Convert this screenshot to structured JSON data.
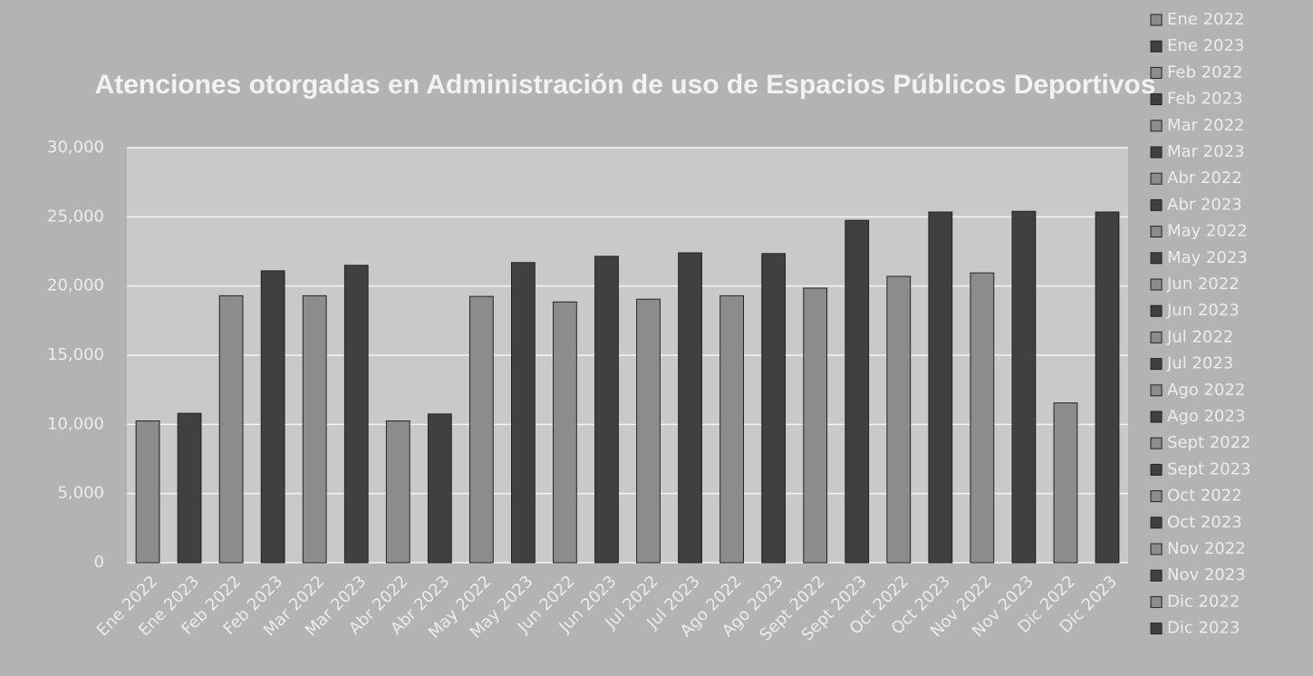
{
  "chart_data": {
    "type": "bar",
    "title": "Atenciones otorgadas en Administración de uso de Espacios Públicos Deportivos",
    "categories": [
      "Ene 2022",
      "Ene 2023",
      "Feb 2022",
      "Feb 2023",
      "Mar 2022",
      "Mar 2023",
      "Abr 2022",
      "Abr 2023",
      "May 2022",
      "May 2023",
      "Jun 2022",
      "Jun 2023",
      "Jul 2022",
      "Jul 2023",
      "Ago 2022",
      "Ago 2023",
      "Sept 2022",
      "Sept 2023",
      "Oct 2022",
      "Oct 2023",
      "Nov 2022",
      "Nov 2023",
      "Dic 2022",
      "Dic 2023"
    ],
    "values": [
      10250,
      10800,
      19300,
      21100,
      19300,
      21500,
      10250,
      10750,
      19250,
      21700,
      18850,
      22150,
      19050,
      22400,
      19300,
      22350,
      19850,
      24750,
      20700,
      25350,
      20950,
      25400,
      11550,
      25350
    ],
    "colors": [
      "#8c8c8c",
      "#404040",
      "#8c8c8c",
      "#404040",
      "#8c8c8c",
      "#404040",
      "#8c8c8c",
      "#404040",
      "#8c8c8c",
      "#404040",
      "#8c8c8c",
      "#404040",
      "#8c8c8c",
      "#404040",
      "#8c8c8c",
      "#404040",
      "#8c8c8c",
      "#404040",
      "#8c8c8c",
      "#404040",
      "#8c8c8c",
      "#404040",
      "#8c8c8c",
      "#404040"
    ],
    "ylim": [
      0,
      30000
    ],
    "yticks": [
      0,
      {
        "value": 5000,
        "label": "5,000"
      },
      {
        "value": 10000,
        "label": "10,000"
      },
      {
        "value": 15000,
        "label": "15,000"
      },
      {
        "value": 20000,
        "label": "20,000"
      },
      {
        "value": 25000,
        "label": "25,000"
      },
      {
        "value": 30000,
        "label": "30,000"
      }
    ],
    "grid": true,
    "legend": "right"
  }
}
